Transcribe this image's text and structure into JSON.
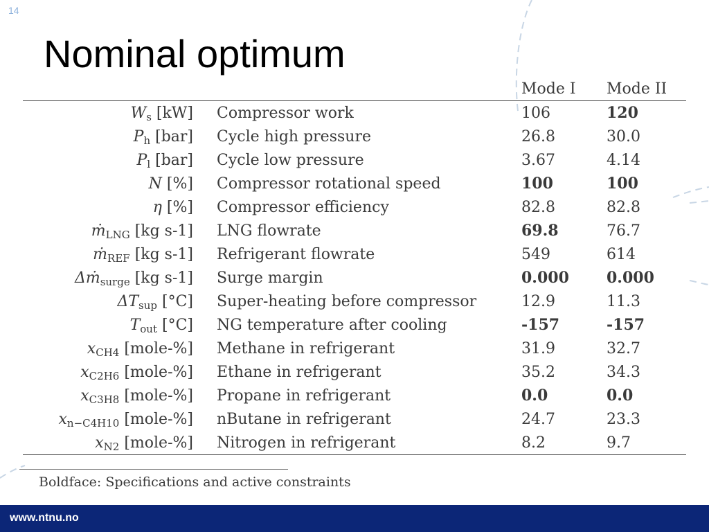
{
  "slide": {
    "number": "14",
    "title": "Nominal optimum",
    "footer_url": "www.ntnu.no"
  },
  "table": {
    "columns": [
      "Mode I",
      "Mode II"
    ],
    "rows": [
      {
        "sym_var": "W",
        "sym_sub": "s",
        "unit": " [kW]",
        "desc": "Compressor work",
        "m1": "106",
        "m2": "120",
        "m1_bold": false,
        "m2_bold": true
      },
      {
        "sym_var": "P",
        "sym_sub": "h",
        "unit": " [bar]",
        "desc": "Cycle high pressure",
        "m1": "26.8",
        "m2": "30.0",
        "m1_bold": false,
        "m2_bold": false
      },
      {
        "sym_var": "P",
        "sym_sub": "l",
        "unit": " [bar]",
        "desc": "Cycle low pressure",
        "m1": "3.67",
        "m2": "4.14",
        "m1_bold": false,
        "m2_bold": false
      },
      {
        "sym_var": "N",
        "sym_sub": "",
        "unit": " [%]",
        "desc": "Compressor rotational speed",
        "m1": "100",
        "m2": "100",
        "m1_bold": true,
        "m2_bold": true
      },
      {
        "sym_var": "η",
        "sym_sub": "",
        "unit": " [%]",
        "desc": "Compressor efficiency",
        "m1": "82.8",
        "m2": "82.8",
        "m1_bold": false,
        "m2_bold": false
      },
      {
        "sym_var": "ṁ",
        "sym_sub": "LNG",
        "unit": " [kg s-1]",
        "desc": "LNG flowrate",
        "m1": "69.8",
        "m2": "76.7",
        "m1_bold": true,
        "m2_bold": false
      },
      {
        "sym_var": "ṁ",
        "sym_sub": "REF",
        "unit": " [kg s-1]",
        "desc": "Refrigerant flowrate",
        "m1": "549",
        "m2": "614",
        "m1_bold": false,
        "m2_bold": false
      },
      {
        "sym_var": "Δṁ",
        "sym_sub": "surge",
        "unit": " [kg s-1]",
        "desc": "Surge margin",
        "m1": "0.000",
        "m2": "0.000",
        "m1_bold": true,
        "m2_bold": true
      },
      {
        "sym_var": "ΔT",
        "sym_sub": "sup",
        "unit": " [°C]",
        "desc": "Super-heating before compressor",
        "m1": "12.9",
        "m2": "11.3",
        "m1_bold": false,
        "m2_bold": false
      },
      {
        "sym_var": "T",
        "sym_sub": "out",
        "unit": " [°C]",
        "desc": "NG temperature after cooling",
        "m1": "-157",
        "m2": "-157",
        "m1_bold": true,
        "m2_bold": true
      },
      {
        "sym_var": "x",
        "sym_sub": "CH4",
        "unit": " [mole-%]",
        "desc": "Methane in refrigerant",
        "m1": "31.9",
        "m2": "32.7",
        "m1_bold": false,
        "m2_bold": false
      },
      {
        "sym_var": "x",
        "sym_sub": "C2H6",
        "unit": " [mole-%]",
        "desc": "Ethane in refrigerant",
        "m1": "35.2",
        "m2": "34.3",
        "m1_bold": false,
        "m2_bold": false
      },
      {
        "sym_var": "x",
        "sym_sub": "C3H8",
        "unit": " [mole-%]",
        "desc": "Propane in refrigerant",
        "m1": "0.0",
        "m2": "0.0",
        "m1_bold": true,
        "m2_bold": true
      },
      {
        "sym_var": "x",
        "sym_sub": "n−C4H10",
        "unit": " [mole-%]",
        "desc": "nButane in refrigerant",
        "m1": "24.7",
        "m2": "23.3",
        "m1_bold": false,
        "m2_bold": false
      },
      {
        "sym_var": "x",
        "sym_sub": "N2",
        "unit": " [mole-%]",
        "desc": "Nitrogen in refrigerant",
        "m1": "8.2",
        "m2": "9.7",
        "m1_bold": false,
        "m2_bold": false
      }
    ]
  },
  "note": "Boldface: Specifications and active constraints",
  "colors": {
    "footer_bg": "#0c2677",
    "deco_line": "#c8d6e5",
    "slide_number": "#8fb3dd"
  }
}
